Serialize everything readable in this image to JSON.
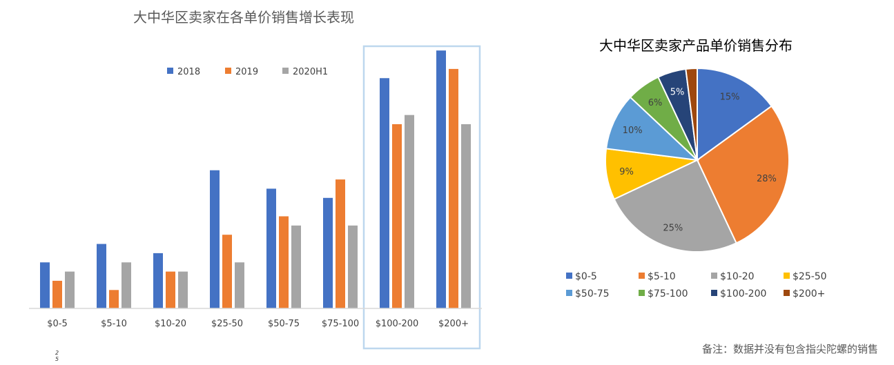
{
  "chart_data": [
    {
      "type": "bar",
      "title": "大中华区卖家在各单价销售增长表现",
      "categories": [
        "$0-5",
        "$5-10",
        "$10-20",
        "$25-50",
        "$50-75",
        "$75-100",
        "$100-200",
        "$200+"
      ],
      "series": [
        {
          "name": "2018",
          "color": "#4472C4",
          "values": [
            5,
            7,
            6,
            15,
            13,
            12,
            25,
            28
          ]
        },
        {
          "name": "2019",
          "color": "#ED7D31",
          "values": [
            3,
            2,
            4,
            8,
            10,
            14,
            20,
            26
          ]
        },
        {
          "name": "2020H1",
          "color": "#A5A5A5",
          "values": [
            4,
            5,
            4,
            5,
            9,
            9,
            21,
            20
          ]
        }
      ],
      "y_axis_shown": false,
      "grid": false,
      "legend": "top",
      "highlighted_categories": [
        "$100-200",
        "$200+"
      ],
      "highlight_color": "#BDD7EE",
      "stray_label": "25"
    },
    {
      "type": "pie",
      "title": "大中华区卖家产品单价销售分布",
      "categories": [
        "$0-5",
        "$5-10",
        "$10-20",
        "$25-50",
        "$50-75",
        "$75-100",
        "$100-200",
        "$200+"
      ],
      "values": [
        15,
        28,
        25,
        9,
        10,
        6,
        5,
        2
      ],
      "labels": [
        "15%",
        "28%",
        "25%",
        "9%",
        "10%",
        "6%",
        "5%",
        ""
      ],
      "colors": [
        "#4472C4",
        "#ED7D31",
        "#A5A5A5",
        "#FFC000",
        "#5B9BD5",
        "#70AD47",
        "#264478",
        "#9E480E"
      ],
      "legend": "bottom"
    }
  ],
  "footnote": "备注：数据并没有包含指尖陀螺的销售"
}
